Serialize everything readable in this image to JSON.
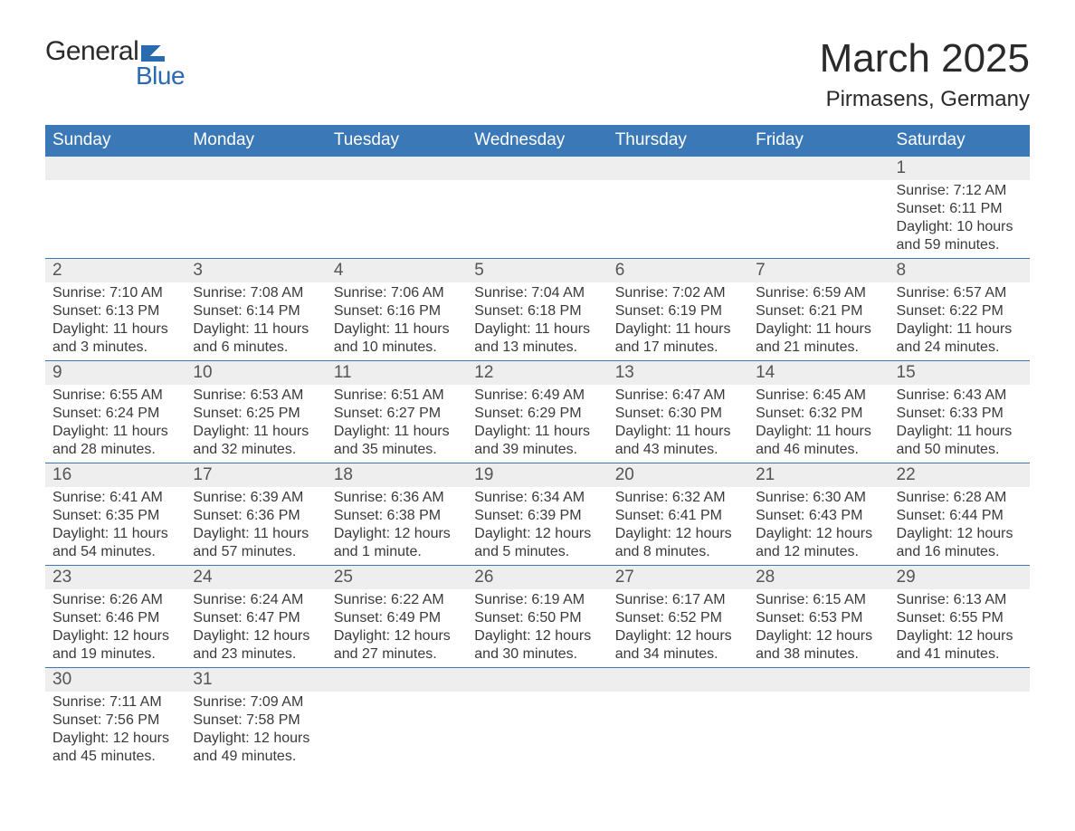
{
  "logo": {
    "word1": "General",
    "word2": "Blue",
    "accent_color": "#2a6bb0"
  },
  "header": {
    "month_title": "March 2025",
    "location": "Pirmasens, Germany"
  },
  "colors": {
    "header_bg": "#3a78b8",
    "header_text": "#ffffff",
    "daynum_bg": "#eeeeee",
    "row_border": "#3a78b8",
    "body_text": "#3a3a3a",
    "page_bg": "#ffffff"
  },
  "fonts": {
    "month_title_size_pt": 33,
    "location_size_pt": 18,
    "weekday_size_pt": 14,
    "daynum_size_pt": 14,
    "info_size_pt": 12
  },
  "calendar": {
    "type": "table",
    "weekdays": [
      "Sunday",
      "Monday",
      "Tuesday",
      "Wednesday",
      "Thursday",
      "Friday",
      "Saturday"
    ],
    "weeks": [
      [
        null,
        null,
        null,
        null,
        null,
        null,
        {
          "n": "1",
          "sr": "7:12 AM",
          "ss": "6:11 PM",
          "dl": "10 hours and 59 minutes."
        }
      ],
      [
        {
          "n": "2",
          "sr": "7:10 AM",
          "ss": "6:13 PM",
          "dl": "11 hours and 3 minutes."
        },
        {
          "n": "3",
          "sr": "7:08 AM",
          "ss": "6:14 PM",
          "dl": "11 hours and 6 minutes."
        },
        {
          "n": "4",
          "sr": "7:06 AM",
          "ss": "6:16 PM",
          "dl": "11 hours and 10 minutes."
        },
        {
          "n": "5",
          "sr": "7:04 AM",
          "ss": "6:18 PM",
          "dl": "11 hours and 13 minutes."
        },
        {
          "n": "6",
          "sr": "7:02 AM",
          "ss": "6:19 PM",
          "dl": "11 hours and 17 minutes."
        },
        {
          "n": "7",
          "sr": "6:59 AM",
          "ss": "6:21 PM",
          "dl": "11 hours and 21 minutes."
        },
        {
          "n": "8",
          "sr": "6:57 AM",
          "ss": "6:22 PM",
          "dl": "11 hours and 24 minutes."
        }
      ],
      [
        {
          "n": "9",
          "sr": "6:55 AM",
          "ss": "6:24 PM",
          "dl": "11 hours and 28 minutes."
        },
        {
          "n": "10",
          "sr": "6:53 AM",
          "ss": "6:25 PM",
          "dl": "11 hours and 32 minutes."
        },
        {
          "n": "11",
          "sr": "6:51 AM",
          "ss": "6:27 PM",
          "dl": "11 hours and 35 minutes."
        },
        {
          "n": "12",
          "sr": "6:49 AM",
          "ss": "6:29 PM",
          "dl": "11 hours and 39 minutes."
        },
        {
          "n": "13",
          "sr": "6:47 AM",
          "ss": "6:30 PM",
          "dl": "11 hours and 43 minutes."
        },
        {
          "n": "14",
          "sr": "6:45 AM",
          "ss": "6:32 PM",
          "dl": "11 hours and 46 minutes."
        },
        {
          "n": "15",
          "sr": "6:43 AM",
          "ss": "6:33 PM",
          "dl": "11 hours and 50 minutes."
        }
      ],
      [
        {
          "n": "16",
          "sr": "6:41 AM",
          "ss": "6:35 PM",
          "dl": "11 hours and 54 minutes."
        },
        {
          "n": "17",
          "sr": "6:39 AM",
          "ss": "6:36 PM",
          "dl": "11 hours and 57 minutes."
        },
        {
          "n": "18",
          "sr": "6:36 AM",
          "ss": "6:38 PM",
          "dl": "12 hours and 1 minute."
        },
        {
          "n": "19",
          "sr": "6:34 AM",
          "ss": "6:39 PM",
          "dl": "12 hours and 5 minutes."
        },
        {
          "n": "20",
          "sr": "6:32 AM",
          "ss": "6:41 PM",
          "dl": "12 hours and 8 minutes."
        },
        {
          "n": "21",
          "sr": "6:30 AM",
          "ss": "6:43 PM",
          "dl": "12 hours and 12 minutes."
        },
        {
          "n": "22",
          "sr": "6:28 AM",
          "ss": "6:44 PM",
          "dl": "12 hours and 16 minutes."
        }
      ],
      [
        {
          "n": "23",
          "sr": "6:26 AM",
          "ss": "6:46 PM",
          "dl": "12 hours and 19 minutes."
        },
        {
          "n": "24",
          "sr": "6:24 AM",
          "ss": "6:47 PM",
          "dl": "12 hours and 23 minutes."
        },
        {
          "n": "25",
          "sr": "6:22 AM",
          "ss": "6:49 PM",
          "dl": "12 hours and 27 minutes."
        },
        {
          "n": "26",
          "sr": "6:19 AM",
          "ss": "6:50 PM",
          "dl": "12 hours and 30 minutes."
        },
        {
          "n": "27",
          "sr": "6:17 AM",
          "ss": "6:52 PM",
          "dl": "12 hours and 34 minutes."
        },
        {
          "n": "28",
          "sr": "6:15 AM",
          "ss": "6:53 PM",
          "dl": "12 hours and 38 minutes."
        },
        {
          "n": "29",
          "sr": "6:13 AM",
          "ss": "6:55 PM",
          "dl": "12 hours and 41 minutes."
        }
      ],
      [
        {
          "n": "30",
          "sr": "7:11 AM",
          "ss": "7:56 PM",
          "dl": "12 hours and 45 minutes."
        },
        {
          "n": "31",
          "sr": "7:09 AM",
          "ss": "7:58 PM",
          "dl": "12 hours and 49 minutes."
        },
        null,
        null,
        null,
        null,
        null
      ]
    ],
    "labels": {
      "sunrise": "Sunrise: ",
      "sunset": "Sunset: ",
      "daylight": "Daylight: "
    }
  }
}
